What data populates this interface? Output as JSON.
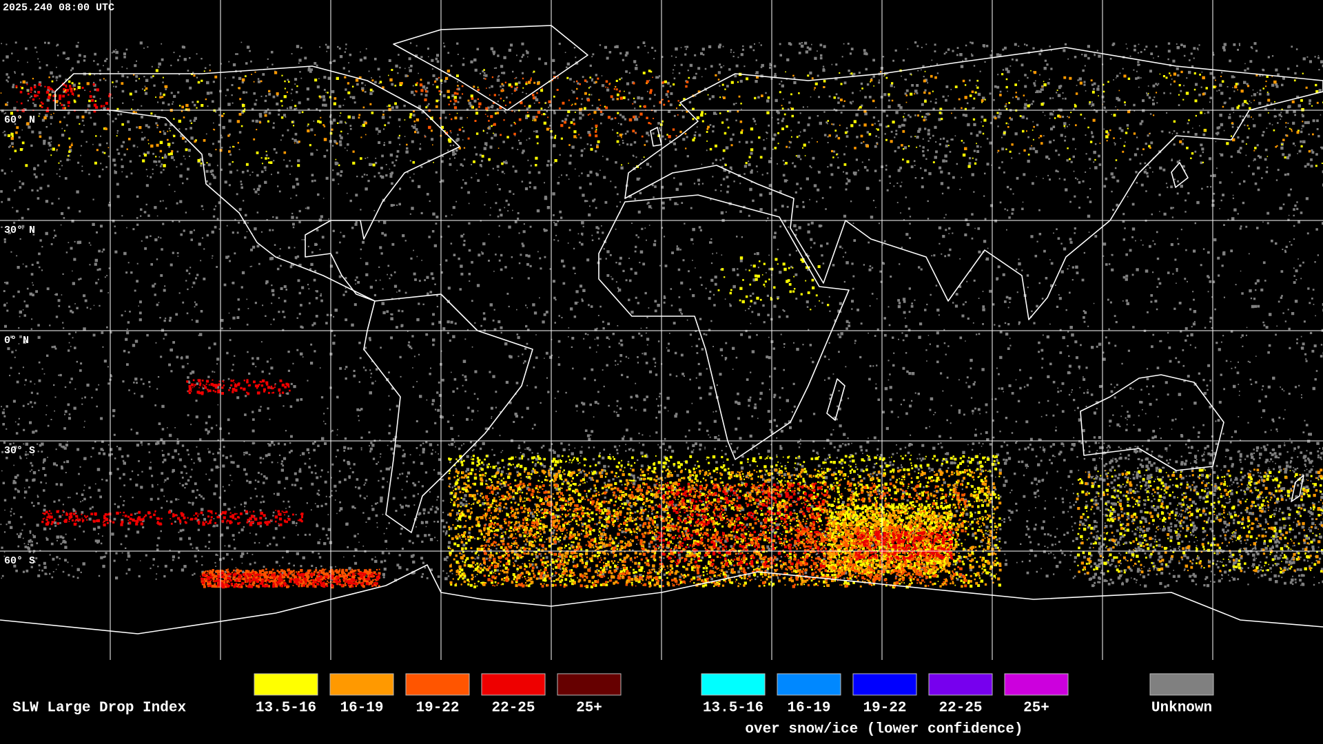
{
  "header": {
    "timestamp": "2025.240 08:00 UTC"
  },
  "map": {
    "latitude_labels": [
      "60° N",
      "30° N",
      "0° N",
      "30° S",
      "60° S"
    ]
  },
  "legend": {
    "title": "SLW Large Drop Index",
    "liquid": [
      {
        "label": "13.5-16",
        "color": "#ffff00"
      },
      {
        "label": "16-19",
        "color": "#ff9900"
      },
      {
        "label": "19-22",
        "color": "#ff5500"
      },
      {
        "label": "22-25",
        "color": "#ee0000"
      },
      {
        "label": "25+",
        "color": "#660000"
      }
    ],
    "snow_ice": {
      "items": [
        {
          "label": "13.5-16",
          "color": "#00ffff"
        },
        {
          "label": "16-19",
          "color": "#0088ff"
        },
        {
          "label": "19-22",
          "color": "#0000ff"
        },
        {
          "label": "22-25",
          "color": "#7700ee"
        },
        {
          "label": "25+",
          "color": "#cc00dd"
        }
      ],
      "caption": "over snow/ice (lower confidence)"
    },
    "unknown": {
      "label": "Unknown",
      "color": "#808080"
    }
  }
}
